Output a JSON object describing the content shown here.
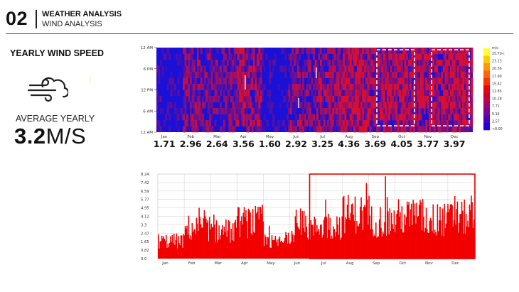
{
  "header": {
    "number": "02",
    "title": "WEATHER ANALYSIS",
    "subtitle": "WIND ANALYSIS"
  },
  "sidebar": {
    "title": "YEARLY WIND SPEED",
    "icon": "wind-icon",
    "average_label": "AVERAGE YEARLY",
    "average_number": "3.2",
    "average_unit": "M/S"
  },
  "colors": {
    "heat_low": "#1a10d8",
    "heat_high": "#e2102a",
    "bars": "#f20000",
    "highlight_box": "#e60000",
    "dashed_box": "#ffffff"
  },
  "chart_data": [
    {
      "type": "heatmap",
      "x_labels": [
        "Jan",
        "Feb",
        "Mar",
        "Apr",
        "May",
        "Jun",
        "Jul",
        "Aug",
        "Sep",
        "Oct",
        "Nov",
        "Dec"
      ],
      "y_labels": [
        "12 AM",
        "6 PM",
        "12 PM",
        "6 AM",
        "12 AM"
      ],
      "monthly_averages": [
        "1.71",
        "2.96",
        "2.64",
        "3.56",
        "1.60",
        "2.92",
        "3.25",
        "4.36",
        "3.69",
        "4.05",
        "3.77",
        "3.97"
      ],
      "legend_unit": "m/s",
      "legend_ticks": [
        "25.70<",
        "23.13",
        "20.56",
        "17.99",
        "15.42",
        "12.85",
        "10.28",
        "7.71",
        "5.14",
        "2.57",
        "<0.00"
      ],
      "legend_colors": [
        "#ffff33",
        "#ffcc00",
        "#ff9900",
        "#ff6600",
        "#ff3300",
        "#ee0011",
        "#cc0033",
        "#aa0066",
        "#7a0099",
        "#4a00bb",
        "#1e00dd"
      ],
      "highlighted_periods": [
        [
          "Sep",
          "Oct"
        ],
        [
          "Nov",
          "Dec"
        ]
      ]
    },
    {
      "type": "bar",
      "y_ticks": [
        "8.24",
        "7.42",
        "6.59",
        "5.77",
        "4.95",
        "4.12",
        "3.3",
        "2.47",
        "1.65",
        "0.82",
        "0.0"
      ],
      "ylim": [
        0,
        8.24
      ],
      "x_labels": [
        "Jan",
        "Feb",
        "Mar",
        "Apr",
        "May",
        "Jun",
        "Jul",
        "Aug",
        "Sep",
        "Oct",
        "Nov",
        "Dec"
      ],
      "monthly_mean": [
        1.71,
        2.96,
        2.64,
        3.56,
        1.6,
        2.92,
        3.25,
        4.36,
        3.69,
        4.05,
        3.77,
        3.97
      ],
      "monthly_peak": [
        3.6,
        5.0,
        4.5,
        5.9,
        3.4,
        5.2,
        6.8,
        7.5,
        8.24,
        6.9,
        6.3,
        6.6
      ],
      "highlighted_period": [
        "Jul",
        "Dec"
      ]
    }
  ]
}
